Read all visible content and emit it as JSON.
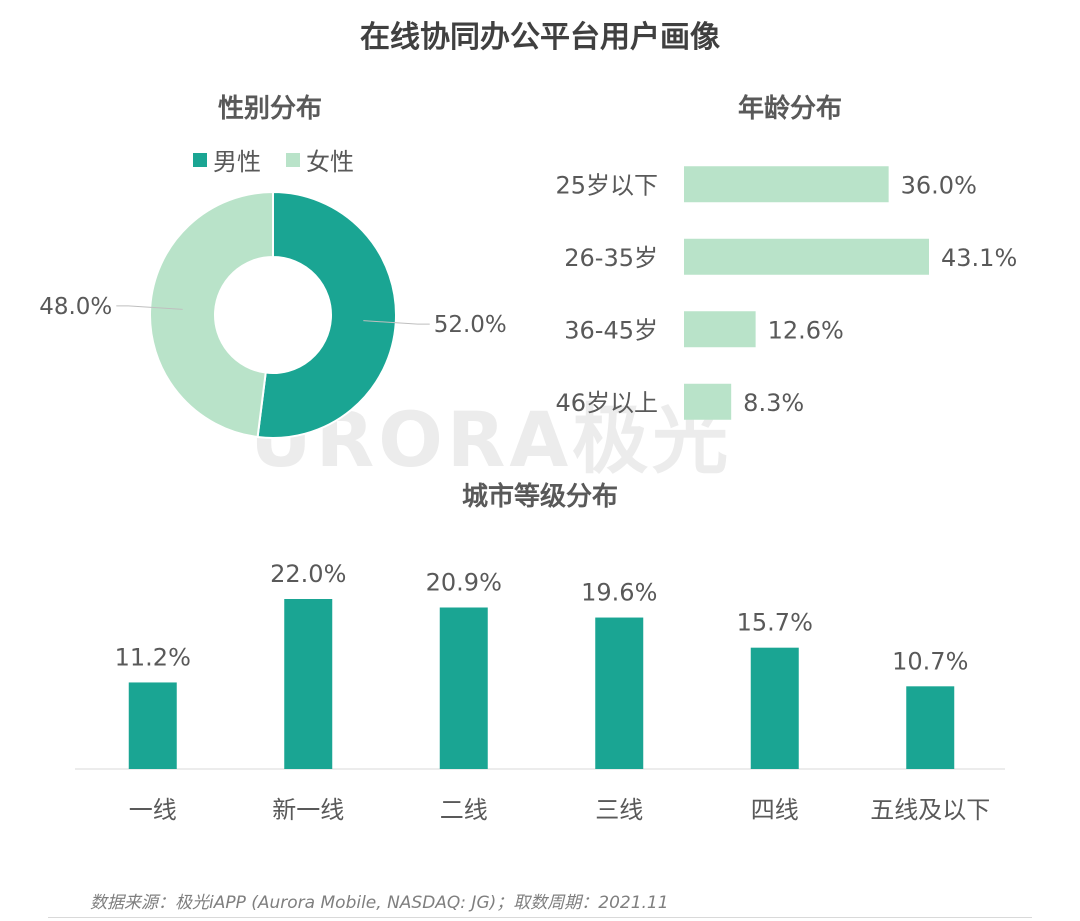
{
  "title": "在线协同办公平台用户画像",
  "watermark": "URORA极光",
  "source": "数据来源：极光iAPP (Aurora Mobile, NASDAQ: JG)；取数周期：2021.11",
  "colors": {
    "primary": "#1aa593",
    "light": "#b9e3c9",
    "axis": "#d9d9d9",
    "text": "#595959"
  },
  "chart_data": [
    {
      "type": "pie",
      "donut": true,
      "title": "性别分布",
      "legend_position": "top",
      "labels": [
        "男性",
        "女性"
      ],
      "values": [
        52.0,
        48.0
      ],
      "value_labels": [
        "52.0%",
        "48.0%"
      ]
    },
    {
      "type": "bar",
      "orientation": "horizontal",
      "title": "年龄分布",
      "categories": [
        "25岁以下",
        "26-35岁",
        "36-45岁",
        "46岁以上"
      ],
      "values": [
        36.0,
        43.1,
        12.6,
        8.3
      ],
      "value_labels": [
        "36.0%",
        "43.1%",
        "12.6%",
        "8.3%"
      ]
    },
    {
      "type": "bar",
      "title": "城市等级分布",
      "categories": [
        "一线",
        "新一线",
        "二线",
        "三线",
        "四线",
        "五线及以下"
      ],
      "values": [
        11.2,
        22.0,
        20.9,
        19.6,
        15.7,
        10.7
      ],
      "value_labels": [
        "11.2%",
        "22.0%",
        "20.9%",
        "19.6%",
        "15.7%",
        "10.7%"
      ]
    }
  ]
}
